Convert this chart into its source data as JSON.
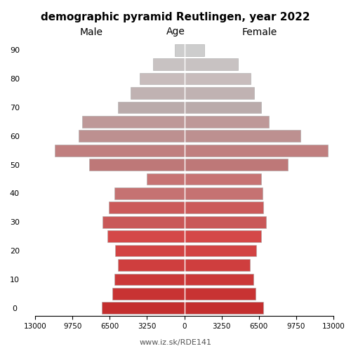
{
  "title": "demographic pyramid Reutlingen, year 2022",
  "label_male": "Male",
  "label_female": "Female",
  "label_age": "Age",
  "footer": "www.iz.sk/RDE141",
  "age_groups": [
    0,
    5,
    10,
    15,
    20,
    25,
    30,
    35,
    40,
    45,
    50,
    55,
    60,
    65,
    70,
    75,
    80,
    85,
    90
  ],
  "male": [
    7200,
    6300,
    6100,
    5800,
    6000,
    6700,
    7100,
    6600,
    6100,
    3300,
    8300,
    11300,
    9200,
    8900,
    5800,
    4700,
    3900,
    2700,
    850
  ],
  "female": [
    6900,
    6200,
    6000,
    5700,
    6300,
    6700,
    7100,
    6900,
    6800,
    6700,
    9000,
    12500,
    10100,
    7400,
    6700,
    6100,
    5800,
    4700,
    1750
  ],
  "xlim": 13000,
  "colors": [
    "#c42e2e",
    "#c83333",
    "#cb3838",
    "#cf3e3e",
    "#d24343",
    "#d44848",
    "#c95858",
    "#cb5a5a",
    "#c57272",
    "#c77474",
    "#be7878",
    "#c07f7f",
    "#bd9090",
    "#be9898",
    "#baabab",
    "#c0b2b2",
    "#c8bcbc",
    "#c8c2c2",
    "#cdcdcd"
  ],
  "bg_color": "#ffffff"
}
